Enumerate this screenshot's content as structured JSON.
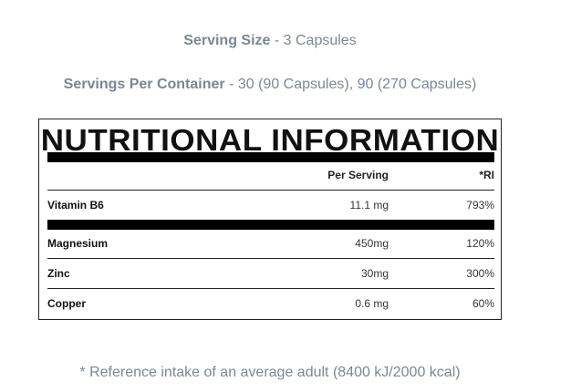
{
  "serving_size": {
    "label": "Serving Size",
    "value": " - 3 Capsules"
  },
  "servings_per_container": {
    "label": "Servings Per Container",
    "value": " - 30 (90 Capsules), 90 (270 Capsules)"
  },
  "panel": {
    "title": "NUTRITIONAL INFORMATION",
    "headers": {
      "per_serving": "Per Serving",
      "ri": "*RI"
    },
    "rows": [
      {
        "name": "Vitamin B6",
        "per_serving": "11.1 mg",
        "ri": "793%"
      },
      {
        "name": "Magnesium",
        "per_serving": "450mg",
        "ri": "120%"
      },
      {
        "name": "Zinc",
        "per_serving": "30mg",
        "ri": "300%"
      },
      {
        "name": "Copper",
        "per_serving": "0.6 mg",
        "ri": "60%"
      }
    ]
  },
  "footnote": "* Reference intake of an average adult (8400 kJ/2000 kcal)"
}
